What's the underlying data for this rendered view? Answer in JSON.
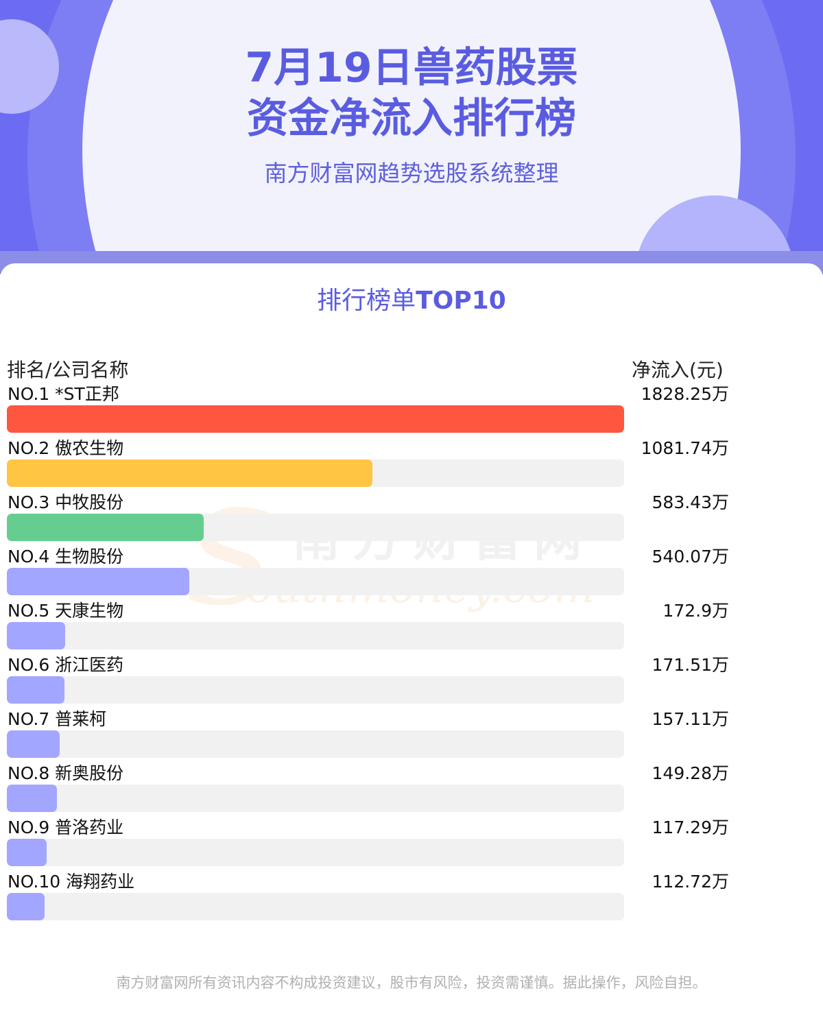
{
  "header": {
    "title_line1": "7月19日兽药股票",
    "title_line2": "资金净流入排行榜",
    "subtitle": "南方财富网趋势选股系统整理"
  },
  "section": {
    "title_prefix": "排行榜单",
    "title_suffix": "TOP10"
  },
  "watermark": {
    "cn": "南方财富网",
    "en": "outhmoney.com",
    "s": "S"
  },
  "table": {
    "col_left": "排名/公司名称",
    "col_right": "净流入(元)"
  },
  "chart_data": {
    "type": "bar",
    "orientation": "horizontal",
    "unit": "万",
    "categories": [
      "*ST正邦",
      "傲农生物",
      "中牧股份",
      "生物股份",
      "天康生物",
      "浙江医药",
      "普莱柯",
      "新奥股份",
      "普洛药业",
      "海翔药业"
    ],
    "ranks": [
      "NO.1",
      "NO.2",
      "NO.3",
      "NO.4",
      "NO.5",
      "NO.6",
      "NO.7",
      "NO.8",
      "NO.9",
      "NO.10"
    ],
    "values": [
      1828.25,
      1081.74,
      583.43,
      540.07,
      172.9,
      171.51,
      157.11,
      149.28,
      117.29,
      112.72
    ],
    "value_labels": [
      "1828.25万",
      "1081.74万",
      "583.43万",
      "540.07万",
      "172.9万",
      "171.51万",
      "157.11万",
      "149.28万",
      "117.29万",
      "112.72万"
    ],
    "colors": [
      "#ff5640",
      "#ffc543",
      "#64cd8f",
      "#a3a6ff",
      "#a3a6ff",
      "#a3a6ff",
      "#a3a6ff",
      "#a3a6ff",
      "#a3a6ff",
      "#a3a6ff"
    ],
    "track_color": "#f1f1f1",
    "xlim": [
      0,
      1828.25
    ]
  },
  "footer": "南方财富网所有资讯内容不构成投资建议，股市有风险，投资需谨慎。据此操作，风险自担。"
}
